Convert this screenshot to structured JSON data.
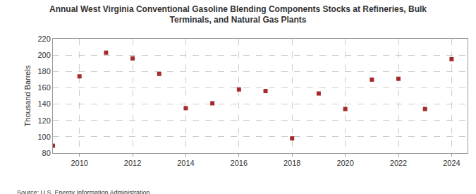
{
  "chart_data": {
    "type": "scatter",
    "title": "Annual West Virginia Conventional Gasoline Blending Components Stocks at Refineries, Bulk\nTerminals, and Natural Gas Plants",
    "y_label": "Thousand Barrels",
    "source": "Source: U.S. Energy Information Administration",
    "x": [
      2009,
      2010,
      2011,
      2012,
      2013,
      2014,
      2015,
      2016,
      2017,
      2018,
      2019,
      2020,
      2021,
      2022,
      2023,
      2024
    ],
    "values": [
      89,
      174,
      203,
      196,
      177,
      135,
      141,
      158,
      156,
      98,
      153,
      134,
      170,
      171,
      134,
      195
    ],
    "color": "#a52a2a",
    "marker": "square",
    "xlim": [
      2009,
      2024.6
    ],
    "xticks": [
      2010,
      2012,
      2014,
      2016,
      2018,
      2020,
      2022,
      2024
    ],
    "ylim": [
      80,
      220
    ],
    "yticks": [
      80,
      100,
      120,
      140,
      160,
      180,
      200,
      220
    ],
    "grid": true
  }
}
